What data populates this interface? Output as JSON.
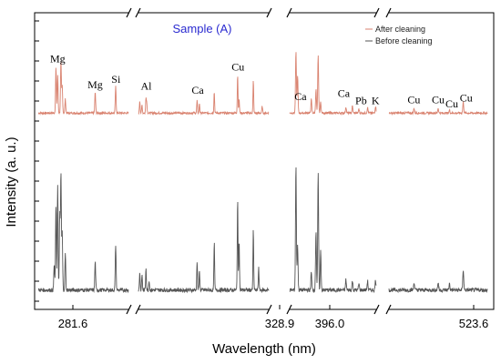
{
  "chart_data": {
    "type": "line",
    "title": "Sample (A)",
    "xlabel": "Wavelength (nm)",
    "ylabel": "Intensity (a. u.)",
    "x_tick_labels": [
      "281.6",
      "328.9",
      "396.0",
      "523.6"
    ],
    "y_tick_labels": [],
    "axis_breaks": 3,
    "legend_position": "top-right",
    "legend": [
      "After cleaning",
      "Before cleaning"
    ],
    "colors": {
      "after": "#d9826f",
      "before": "#555555",
      "title": "#2a2ad0",
      "axis": "#000000"
    },
    "panels": [
      {
        "name": "panel-1",
        "x_range": [
          277.0,
          290.0
        ]
      },
      {
        "name": "panel-2",
        "x_range": [
          308.0,
          330.0
        ]
      },
      {
        "name": "panel-3",
        "x_range": [
          392.5,
          404.5
        ]
      },
      {
        "name": "panel-4",
        "x_range": [
          512.0,
          525.0
        ]
      }
    ],
    "series": [
      {
        "name": "After cleaning",
        "baseline": 0.05,
        "peaks": [
          [
            279.55,
            0.66
          ],
          [
            279.8,
            0.55
          ],
          [
            280.27,
            0.75
          ],
          [
            280.45,
            0.4
          ],
          [
            280.9,
            0.2
          ],
          [
            285.21,
            0.3
          ],
          [
            288.16,
            0.38
          ],
          [
            308.22,
            0.18
          ],
          [
            308.6,
            0.12
          ],
          [
            309.27,
            0.22
          ],
          [
            309.4,
            0.14
          ],
          [
            317.9,
            0.18
          ],
          [
            318.3,
            0.14
          ],
          [
            320.8,
            0.31
          ],
          [
            324.75,
            0.56
          ],
          [
            325.0,
            0.2
          ],
          [
            327.4,
            0.47
          ],
          [
            328.9,
            0.1
          ],
          [
            393.37,
            0.89
          ],
          [
            393.6,
            0.55
          ],
          [
            395.5,
            0.2
          ],
          [
            396.15,
            0.34
          ],
          [
            396.45,
            0.83
          ],
          [
            396.8,
            0.16
          ],
          [
            400.3,
            0.09
          ],
          [
            401.2,
            0.1
          ],
          [
            402.1,
            0.06
          ],
          [
            403.3,
            0.08
          ],
          [
            404.41,
            0.1
          ],
          [
            515.32,
            0.07
          ],
          [
            518.5,
            0.07
          ],
          [
            520.0,
            0.04
          ],
          [
            521.82,
            0.16
          ]
        ]
      },
      {
        "name": "Before cleaning",
        "baseline": 0.03,
        "peaks": [
          [
            279.3,
            0.2
          ],
          [
            279.55,
            0.66
          ],
          [
            279.8,
            0.82
          ],
          [
            280.1,
            0.6
          ],
          [
            280.27,
            0.9
          ],
          [
            280.45,
            0.45
          ],
          [
            280.9,
            0.28
          ],
          [
            285.21,
            0.22
          ],
          [
            288.16,
            0.35
          ],
          [
            308.22,
            0.14
          ],
          [
            308.6,
            0.12
          ],
          [
            309.27,
            0.18
          ],
          [
            309.8,
            0.08
          ],
          [
            317.9,
            0.22
          ],
          [
            318.3,
            0.16
          ],
          [
            320.8,
            0.37
          ],
          [
            324.75,
            0.72
          ],
          [
            325.0,
            0.4
          ],
          [
            327.4,
            0.47
          ],
          [
            328.3,
            0.18
          ],
          [
            393.37,
            0.96
          ],
          [
            393.6,
            0.35
          ],
          [
            395.5,
            0.14
          ],
          [
            396.15,
            0.46
          ],
          [
            396.45,
            0.9
          ],
          [
            396.8,
            0.3
          ],
          [
            400.3,
            0.08
          ],
          [
            401.2,
            0.07
          ],
          [
            402.1,
            0.05
          ],
          [
            403.3,
            0.07
          ],
          [
            404.41,
            0.08
          ],
          [
            515.32,
            0.06
          ],
          [
            518.5,
            0.06
          ],
          [
            520.0,
            0.05
          ],
          [
            521.82,
            0.16
          ]
        ]
      }
    ],
    "annotations": [
      {
        "text": "Mg",
        "x": 279.8,
        "series": "After cleaning",
        "above": 0.08
      },
      {
        "text": "Mg",
        "x": 285.2,
        "series": "After cleaning",
        "above": 0.06
      },
      {
        "text": "Si",
        "x": 288.2,
        "series": "After cleaning",
        "above": 0.06
      },
      {
        "text": "Al",
        "x": 309.3,
        "series": "After cleaning",
        "above": 0.1
      },
      {
        "text": "Ca",
        "x": 318.0,
        "series": "After cleaning",
        "above": 0.1
      },
      {
        "text": "Cu",
        "x": 324.8,
        "series": "After cleaning",
        "above": 0.06
      },
      {
        "text": "Ca",
        "x": 394.0,
        "series": "After cleaning",
        "above": 0.05
      },
      {
        "text": "Ca",
        "x": 400.0,
        "series": "After cleaning",
        "above": 0.14
      },
      {
        "text": "Pb",
        "x": 402.4,
        "series": "After cleaning",
        "above": 0.07
      },
      {
        "text": "K",
        "x": 404.4,
        "series": "After cleaning",
        "above": 0.03
      },
      {
        "text": "Cu",
        "x": 515.3,
        "series": "After cleaning",
        "above": 0.07
      },
      {
        "text": "Cu",
        "x": 518.5,
        "series": "After cleaning",
        "above": 0.07
      },
      {
        "text": "Cu",
        "x": 520.3,
        "series": "After cleaning",
        "above": 0.04
      },
      {
        "text": "Cu",
        "x": 522.2,
        "series": "After cleaning",
        "above": 0.1
      }
    ]
  }
}
